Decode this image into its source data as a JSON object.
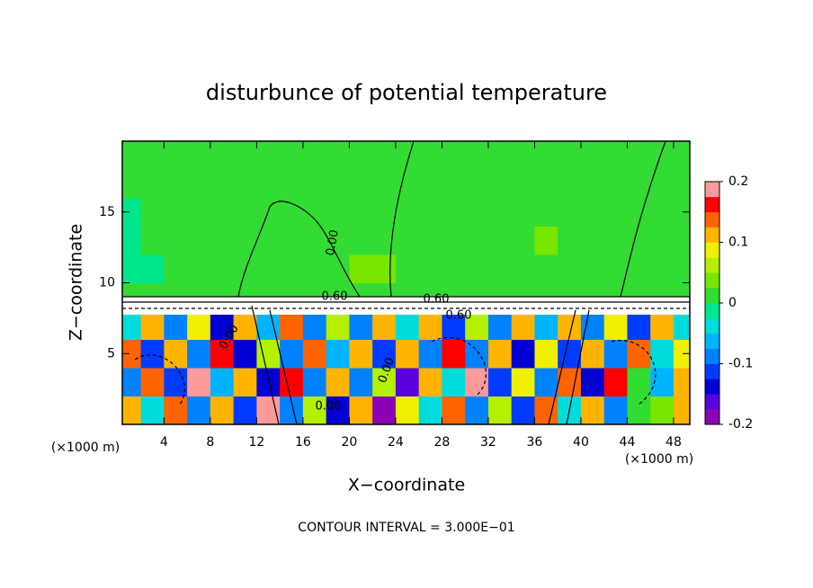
{
  "chart_data": {
    "type": "contour",
    "title": "disturbunce of potential temperature",
    "x_label": "X−coordinate",
    "y_label": "Z−coordinate",
    "x_unit": "(×1000 m)",
    "footer": "CONTOUR INTERVAL = 3.000E−01",
    "xlim": [
      0.4,
      49.4
    ],
    "ylim": [
      0,
      20
    ],
    "xticks": [
      4,
      8,
      12,
      16,
      20,
      24,
      28,
      32,
      36,
      40,
      44,
      48
    ],
    "yticks": [
      5,
      10,
      15
    ],
    "x": [
      1,
      3,
      5,
      7,
      9,
      11,
      13,
      15,
      17,
      19,
      21,
      23,
      25,
      27,
      29,
      31,
      33,
      35,
      37,
      39,
      41,
      43,
      45,
      47,
      49
    ],
    "z": [
      1,
      3,
      5,
      7,
      9,
      11,
      13,
      15,
      17,
      19
    ],
    "values": [
      [
        0.12,
        -0.05,
        0.15,
        -0.08,
        0.1,
        -0.12,
        0.18,
        -0.1,
        0.05,
        -0.15,
        0.12,
        -0.18,
        0.08,
        -0.05,
        0.14,
        -0.1,
        0.06,
        -0.12,
        0.15,
        -0.05,
        0.1,
        -0.08,
        0.02,
        0.03,
        0.12
      ],
      [
        -0.1,
        0.14,
        -0.12,
        0.18,
        -0.06,
        0.1,
        -0.14,
        0.16,
        -0.08,
        0.12,
        -0.1,
        0.05,
        -0.16,
        0.12,
        -0.04,
        0.18,
        -0.12,
        0.08,
        -0.1,
        0.14,
        -0.15,
        0.16,
        0.01,
        -0.06,
        0.1
      ],
      [
        0.15,
        -0.12,
        0.1,
        -0.08,
        0.16,
        -0.14,
        0.05,
        -0.1,
        0.14,
        -0.06,
        0.12,
        -0.12,
        0.1,
        -0.08,
        0.16,
        -0.1,
        0.12,
        -0.14,
        0.08,
        -0.12,
        0.1,
        -0.1,
        0.14,
        -0.05,
        0.08
      ],
      [
        -0.05,
        0.12,
        -0.1,
        0.08,
        -0.14,
        0.1,
        -0.06,
        0.14,
        -0.1,
        0.05,
        -0.08,
        0.12,
        -0.04,
        0.1,
        -0.12,
        0.06,
        -0.08,
        0.1,
        -0.06,
        0.12,
        -0.1,
        0.08,
        -0.12,
        0.1,
        -0.05
      ],
      [
        0.01,
        0.01,
        0.01,
        0.01,
        0.01,
        0.01,
        0.01,
        0.01,
        0.01,
        0.01,
        0.01,
        0.01,
        0.01,
        0.01,
        0.01,
        0.01,
        0.01,
        0.01,
        0.01,
        0.01,
        0.01,
        0.01,
        0.01,
        0.01,
        0.01
      ],
      [
        -0.02,
        -0.01,
        0.0,
        0.01,
        0.01,
        0.01,
        0.02,
        0.01,
        0.01,
        0.02,
        0.03,
        0.03,
        0.02,
        0.01,
        0.01,
        0.01,
        0.02,
        0.01,
        0.01,
        0.01,
        0.01,
        0.01,
        0.01,
        0.01,
        0.01
      ],
      [
        -0.01,
        0.0,
        0.01,
        0.02,
        0.01,
        0.01,
        0.01,
        0.02,
        0.02,
        0.01,
        0.01,
        0.01,
        0.01,
        0.01,
        0.01,
        0.01,
        0.01,
        0.02,
        0.03,
        0.02,
        0.01,
        0.01,
        0.01,
        0.01,
        0.02
      ],
      [
        -0.01,
        0.01,
        0.01,
        0.01,
        0.01,
        0.01,
        0.01,
        0.01,
        0.01,
        0.01,
        0.01,
        0.01,
        0.01,
        0.01,
        0.01,
        0.01,
        0.01,
        0.01,
        0.02,
        0.01,
        0.01,
        0.01,
        0.01,
        0.01,
        0.01
      ],
      [
        0.01,
        0.01,
        0.01,
        0.01,
        0.01,
        0.01,
        0.01,
        0.01,
        0.01,
        0.01,
        0.01,
        0.01,
        0.01,
        0.01,
        0.01,
        0.01,
        0.01,
        0.01,
        0.01,
        0.01,
        0.01,
        0.01,
        0.01,
        0.01,
        0.01
      ],
      [
        0.01,
        0.01,
        0.01,
        0.01,
        0.01,
        0.01,
        0.01,
        0.01,
        0.01,
        0.01,
        0.01,
        0.01,
        0.01,
        0.01,
        0.01,
        0.01,
        0.01,
        0.01,
        0.01,
        0.01,
        0.01,
        0.01,
        0.01,
        0.01,
        0.01
      ]
    ],
    "clim": [
      -0.2,
      0.2
    ],
    "cticks": [
      -0.2,
      -0.1,
      0,
      0.1,
      0.2
    ],
    "colors": [
      "#8c00b4",
      "#5a00dc",
      "#0000d2",
      "#003cff",
      "#0082ff",
      "#00b4ff",
      "#00dcdc",
      "#00e68c",
      "#32dc32",
      "#78e600",
      "#b4f000",
      "#f0f000",
      "#ffb400",
      "#ff6400",
      "#ff0000",
      "#ff9a9a"
    ],
    "annotations": [
      "0.00",
      "0.60",
      "0.60",
      "0.60",
      "0.00",
      "0.00",
      "0.00"
    ]
  }
}
